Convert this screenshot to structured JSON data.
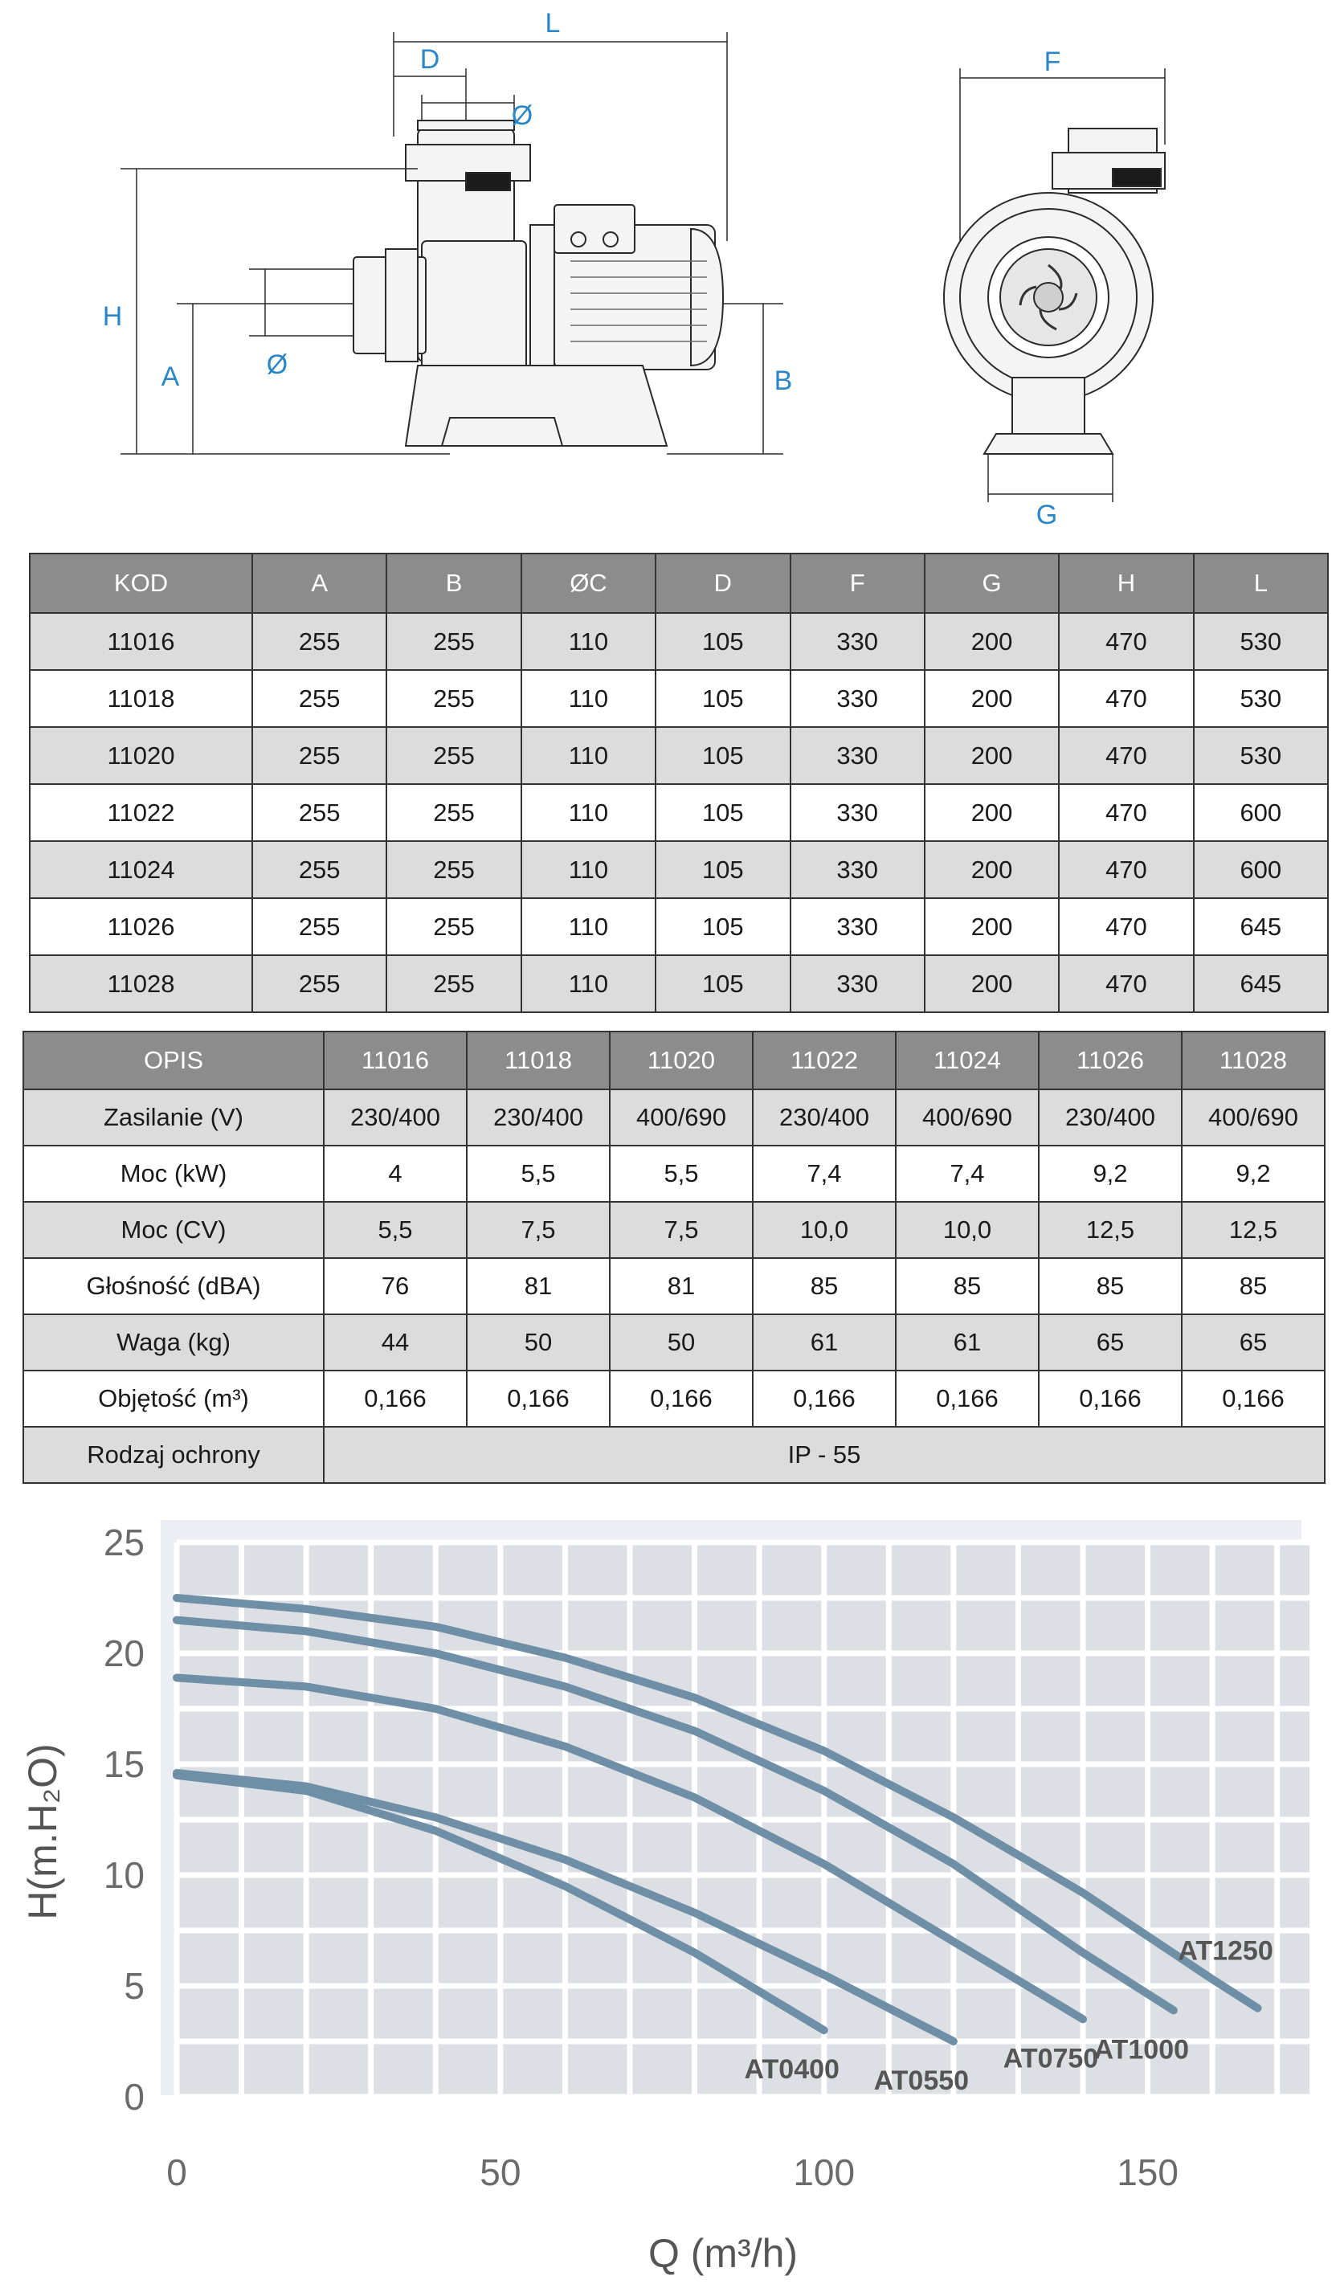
{
  "drawing": {
    "side_labels": {
      "L": "L",
      "D": "D",
      "C_top": "Ø",
      "H": "H",
      "A": "A",
      "C_mid": "Ø",
      "B": "B"
    },
    "front_labels": {
      "F": "F",
      "G": "G"
    },
    "accent_color": "#2a86c7"
  },
  "dimensions_table": {
    "headers": [
      "KOD",
      "A",
      "B",
      "ØC",
      "D",
      "F",
      "G",
      "H",
      "L"
    ],
    "rows": [
      [
        "11016",
        "255",
        "255",
        "110",
        "105",
        "330",
        "200",
        "470",
        "530"
      ],
      [
        "11018",
        "255",
        "255",
        "110",
        "105",
        "330",
        "200",
        "470",
        "530"
      ],
      [
        "11020",
        "255",
        "255",
        "110",
        "105",
        "330",
        "200",
        "470",
        "530"
      ],
      [
        "11022",
        "255",
        "255",
        "110",
        "105",
        "330",
        "200",
        "470",
        "600"
      ],
      [
        "11024",
        "255",
        "255",
        "110",
        "105",
        "330",
        "200",
        "470",
        "600"
      ],
      [
        "11026",
        "255",
        "255",
        "110",
        "105",
        "330",
        "200",
        "470",
        "645"
      ],
      [
        "11028",
        "255",
        "255",
        "110",
        "105",
        "330",
        "200",
        "470",
        "645"
      ]
    ]
  },
  "specs_table": {
    "headers": [
      "OPIS",
      "11016",
      "11018",
      "11020",
      "11022",
      "11024",
      "11026",
      "11028"
    ],
    "rows": [
      {
        "label": "Zasilanie (V)",
        "values": [
          "230/400",
          "230/400",
          "400/690",
          "230/400",
          "400/690",
          "230/400",
          "400/690"
        ]
      },
      {
        "label": "Moc (kW)",
        "values": [
          "4",
          "5,5",
          "5,5",
          "7,4",
          "7,4",
          "9,2",
          "9,2"
        ]
      },
      {
        "label": "Moc (CV)",
        "values": [
          "5,5",
          "7,5",
          "7,5",
          "10,0",
          "10,0",
          "12,5",
          "12,5"
        ]
      },
      {
        "label": "Głośność (dBA)",
        "values": [
          "76",
          "81",
          "81",
          "85",
          "85",
          "85",
          "85"
        ]
      },
      {
        "label": "Waga (kg)",
        "values": [
          "44",
          "50",
          "50",
          "61",
          "61",
          "65",
          "65"
        ]
      },
      {
        "label": "Objętość (m³)",
        "values": [
          "0,166",
          "0,166",
          "0,166",
          "0,166",
          "0,166",
          "0,166",
          "0,166"
        ]
      }
    ],
    "protection": {
      "label": "Rodzaj ochrony",
      "value": "IP - 55"
    }
  },
  "chart_data": {
    "type": "line",
    "xlabel": "Q (m³/h)",
    "ylabel": "H(m.H₂O)",
    "xlim": [
      0,
      175
    ],
    "ylim": [
      0,
      25
    ],
    "x_ticks": [
      0,
      50,
      100,
      150
    ],
    "y_ticks": [
      0,
      5,
      10,
      15,
      20,
      25
    ],
    "grid": true,
    "line_color": "#6e8fa6",
    "series": [
      {
        "name": "AT0400",
        "x": [
          0,
          20,
          40,
          60,
          80,
          100
        ],
        "y": [
          14.5,
          13.8,
          12,
          9.5,
          6.5,
          3
        ]
      },
      {
        "name": "AT0550",
        "x": [
          0,
          20,
          40,
          60,
          80,
          100,
          120
        ],
        "y": [
          14.6,
          14,
          12.6,
          10.7,
          8.3,
          5.5,
          2.5
        ]
      },
      {
        "name": "AT0750",
        "x": [
          0,
          20,
          40,
          60,
          80,
          100,
          120,
          140
        ],
        "y": [
          18.9,
          18.5,
          17.5,
          15.8,
          13.5,
          10.5,
          7,
          3.5
        ]
      },
      {
        "name": "AT1000",
        "x": [
          0,
          20,
          40,
          60,
          80,
          100,
          120,
          140,
          154
        ],
        "y": [
          21.5,
          21,
          20,
          18.5,
          16.5,
          13.8,
          10.5,
          6.5,
          3.9
        ]
      },
      {
        "name": "AT1250",
        "x": [
          0,
          20,
          40,
          60,
          80,
          100,
          120,
          140,
          160,
          167
        ],
        "y": [
          22.5,
          22,
          21.2,
          19.8,
          18,
          15.6,
          12.6,
          9.2,
          5.3,
          4
        ]
      }
    ]
  }
}
